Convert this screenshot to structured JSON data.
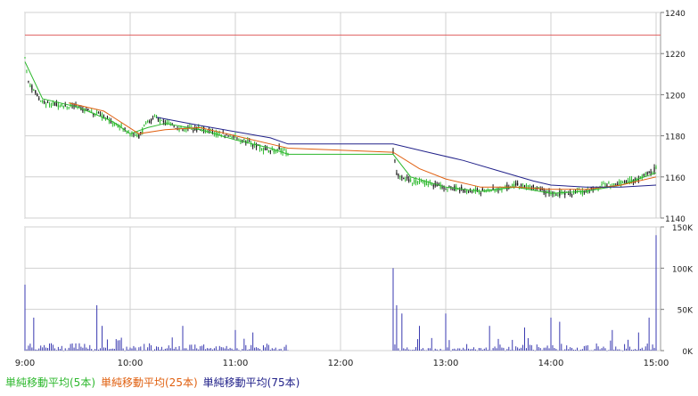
{
  "chart_data": {
    "type": "candlestick_with_volume",
    "x_tick_labels": [
      "9:00",
      "10:00",
      "11:00",
      "12:00",
      "13:00",
      "14:00",
      "15:00"
    ],
    "price_axis": {
      "ticks": [
        "1240",
        "1220",
        "1200",
        "1180",
        "1160",
        "1140"
      ],
      "tick_values": [
        1240,
        1220,
        1200,
        1180,
        1160,
        1140
      ],
      "range": [
        1140,
        1240
      ],
      "reference_line": 1229
    },
    "volume_axis": {
      "ticks": [
        "150K",
        "100K",
        "50K",
        "0K"
      ],
      "tick_values": [
        150000,
        100000,
        50000,
        0
      ],
      "range": [
        0,
        150000
      ]
    },
    "sessions": [
      {
        "start": "9:00",
        "end": "11:30"
      },
      {
        "start": "12:30",
        "end": "15:00"
      }
    ],
    "price_path": [
      [
        "9:00",
        1218
      ],
      [
        "9:02",
        1206
      ],
      [
        "9:05",
        1202
      ],
      [
        "9:10",
        1196
      ],
      [
        "9:20",
        1195
      ],
      [
        "9:30",
        1194
      ],
      [
        "9:40",
        1191
      ],
      [
        "9:50",
        1187
      ],
      [
        "10:00",
        1181
      ],
      [
        "10:05",
        1180
      ],
      [
        "10:10",
        1187
      ],
      [
        "10:15",
        1189
      ],
      [
        "10:20",
        1186
      ],
      [
        "10:30",
        1183
      ],
      [
        "10:40",
        1184
      ],
      [
        "10:50",
        1181
      ],
      [
        "11:00",
        1179
      ],
      [
        "11:10",
        1176
      ],
      [
        "11:20",
        1172
      ],
      [
        "11:25",
        1174
      ],
      [
        "11:30",
        1171
      ],
      [
        "12:30",
        1172
      ],
      [
        "12:32",
        1162
      ],
      [
        "12:40",
        1158
      ],
      [
        "12:50",
        1157
      ],
      [
        "13:00",
        1155
      ],
      [
        "13:10",
        1154
      ],
      [
        "13:20",
        1153
      ],
      [
        "13:30",
        1154
      ],
      [
        "13:40",
        1156
      ],
      [
        "13:50",
        1155
      ],
      [
        "14:00",
        1152
      ],
      [
        "14:10",
        1152
      ],
      [
        "14:20",
        1153
      ],
      [
        "14:30",
        1156
      ],
      [
        "14:40",
        1157
      ],
      [
        "14:50",
        1159
      ],
      [
        "14:58",
        1163
      ],
      [
        "15:00",
        1164
      ]
    ],
    "series": [
      {
        "name": "単純移動平均(5本)",
        "color": "#2db82d",
        "points": [
          [
            "9:00",
            1216
          ],
          [
            "9:10",
            1198
          ],
          [
            "9:30",
            1194
          ],
          [
            "9:50",
            1187
          ],
          [
            "10:00",
            1181
          ],
          [
            "10:10",
            1184
          ],
          [
            "10:20",
            1186
          ],
          [
            "10:40",
            1183
          ],
          [
            "11:00",
            1178
          ],
          [
            "11:20",
            1174
          ],
          [
            "11:30",
            1171
          ],
          [
            "12:30",
            1171
          ],
          [
            "12:40",
            1160
          ],
          [
            "13:00",
            1155
          ],
          [
            "13:20",
            1153
          ],
          [
            "13:40",
            1155
          ],
          [
            "14:00",
            1152
          ],
          [
            "14:20",
            1153
          ],
          [
            "14:40",
            1156
          ],
          [
            "15:00",
            1162
          ]
        ]
      },
      {
        "name": "単純移動平均(25本)",
        "color": "#e06010",
        "points": [
          [
            "9:25",
            1196
          ],
          [
            "9:45",
            1192
          ],
          [
            "10:05",
            1181
          ],
          [
            "10:20",
            1183
          ],
          [
            "10:40",
            1184
          ],
          [
            "11:00",
            1180
          ],
          [
            "11:20",
            1176
          ],
          [
            "11:30",
            1174
          ],
          [
            "12:30",
            1172
          ],
          [
            "12:45",
            1164
          ],
          [
            "13:00",
            1159
          ],
          [
            "13:20",
            1155
          ],
          [
            "13:40",
            1155
          ],
          [
            "14:00",
            1154
          ],
          [
            "14:20",
            1154
          ],
          [
            "14:40",
            1156
          ],
          [
            "15:00",
            1160
          ]
        ]
      },
      {
        "name": "単純移動平均(75本)",
        "color": "#22228a",
        "points": [
          [
            "10:15",
            1189
          ],
          [
            "10:40",
            1185
          ],
          [
            "11:00",
            1182
          ],
          [
            "11:20",
            1179
          ],
          [
            "11:30",
            1176
          ],
          [
            "12:30",
            1176
          ],
          [
            "12:50",
            1172
          ],
          [
            "13:10",
            1168
          ],
          [
            "13:30",
            1163
          ],
          [
            "13:50",
            1158
          ],
          [
            "14:00",
            1156
          ],
          [
            "14:20",
            1155
          ],
          [
            "14:40",
            1155
          ],
          [
            "15:00",
            1156
          ]
        ]
      }
    ],
    "volume_spikes": [
      [
        "9:00",
        80000
      ],
      [
        "9:05",
        40000
      ],
      [
        "9:41",
        55000
      ],
      [
        "9:44",
        30000
      ],
      [
        "10:30",
        30000
      ],
      [
        "11:00",
        25000
      ],
      [
        "11:10",
        22000
      ],
      [
        "12:30",
        100000
      ],
      [
        "12:32",
        55000
      ],
      [
        "12:35",
        45000
      ],
      [
        "12:45",
        30000
      ],
      [
        "13:00",
        45000
      ],
      [
        "13:25",
        30000
      ],
      [
        "13:45",
        28000
      ],
      [
        "14:00",
        40000
      ],
      [
        "14:05",
        35000
      ],
      [
        "14:35",
        25000
      ],
      [
        "14:50",
        22000
      ],
      [
        "14:56",
        40000
      ],
      [
        "15:00",
        140000
      ]
    ],
    "grid": true
  },
  "legend": {
    "ma5": "単純移動平均(5本)",
    "ma25": "単純移動平均(25本)",
    "ma75": "単純移動平均(75本)"
  },
  "colors": {
    "ma5": "#2db82d",
    "ma25": "#e06010",
    "ma75": "#22228a",
    "reference_line": "#e06060",
    "candle_up": "#2db82d",
    "candle_down": "#111111",
    "volume": "#3a3ab0"
  }
}
